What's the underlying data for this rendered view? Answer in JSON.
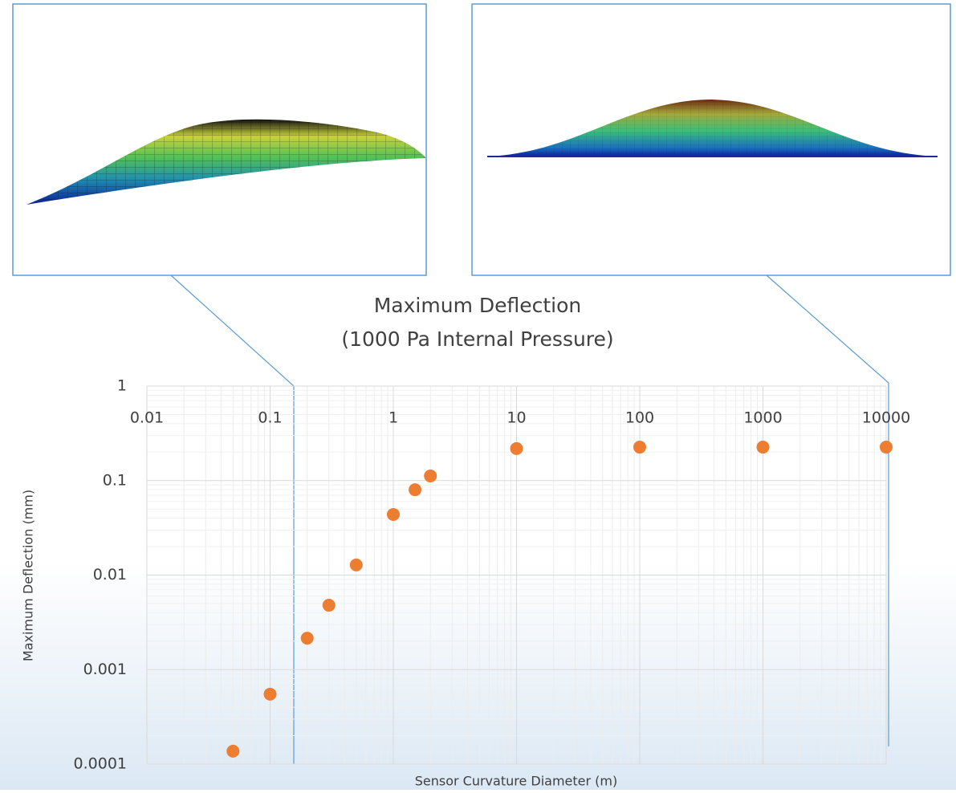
{
  "chart_data": {
    "type": "scatter",
    "title": "Maximum Deflection",
    "subtitle": "(1000 Pa Internal Pressure)",
    "x_label": "Sensor Curvature Diameter (m)",
    "y_label": "Maximum Deflection (mm)",
    "x_scale": "log",
    "y_scale": "log",
    "grid": true,
    "xlim": [
      0.01,
      10000
    ],
    "xticks": [
      0.01,
      0.1,
      1,
      10,
      100,
      1000,
      10000
    ],
    "ylim": [
      0.0001,
      1
    ],
    "yticks": [
      1,
      0.1,
      0.01,
      0.001,
      0.0001
    ],
    "series": [
      {
        "color": "#ed7d31",
        "x": [
          0.05,
          0.1,
          0.2,
          0.3,
          0.5,
          1,
          1.5,
          2,
          10,
          100,
          1000,
          10000
        ],
        "values": [
          0.000137,
          0.00055,
          0.00215,
          0.0048,
          0.0128,
          0.0438,
          0.08,
          0.112,
          0.218,
          0.226,
          0.226,
          0.226
        ]
      }
    ]
  }
}
